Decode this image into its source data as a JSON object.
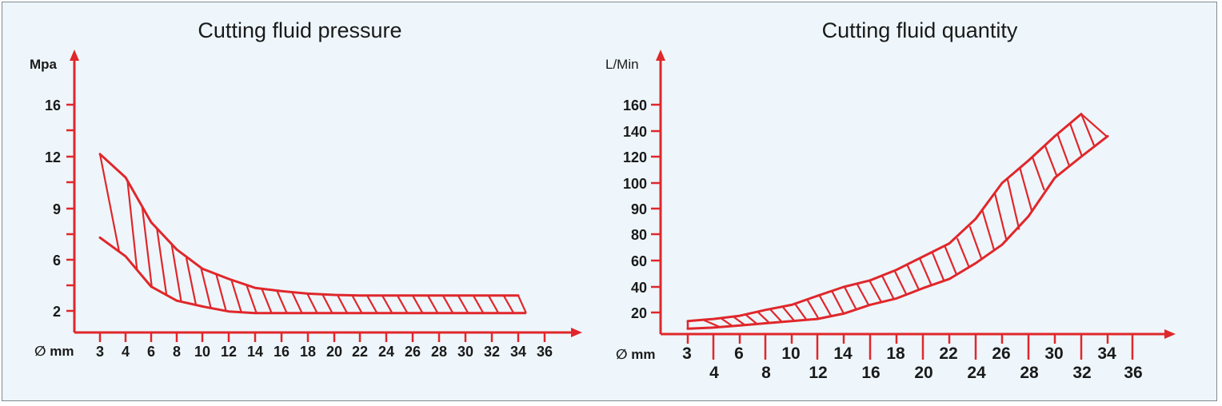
{
  "colors": {
    "accent": "#e0272b",
    "background": "#eef6fb",
    "text": "#1a1a1a"
  },
  "chart_data": [
    {
      "type": "area",
      "title": "Cutting fluid pressure",
      "ylabel": "Mpa",
      "xlabel": "∅ mm",
      "x_ticks": [
        3,
        4,
        6,
        8,
        10,
        12,
        14,
        16,
        18,
        20,
        22,
        24,
        26,
        28,
        30,
        32,
        34,
        36
      ],
      "y_ticks": [
        2,
        6,
        9,
        12,
        16
      ],
      "grid": false,
      "hatched_band": true,
      "series": [
        {
          "x": [
            3,
            4,
            6,
            8,
            10,
            12,
            14,
            16,
            18,
            20,
            22,
            24,
            26,
            28,
            30,
            32,
            34
          ],
          "values": [
            12.2,
            10.8,
            8.2,
            6.6,
            5.3,
            4.5,
            3.8,
            3.55,
            3.35,
            3.25,
            3.2,
            3.2,
            3.2,
            3.2,
            3.2,
            3.2,
            3.2
          ]
        },
        {
          "x": [
            3,
            4,
            6,
            8,
            10,
            12,
            14,
            16,
            18,
            20,
            22,
            24,
            26,
            28,
            30,
            32,
            34
          ],
          "values": [
            7.3,
            6.2,
            3.9,
            2.8,
            2.35,
            1.95,
            1.8,
            1.8,
            1.8,
            1.8,
            1.8,
            1.8,
            1.8,
            1.8,
            1.8,
            1.8,
            1.8
          ]
        }
      ]
    },
    {
      "type": "area",
      "title": "Cutting fluid quantity",
      "ylabel": "L/Min",
      "xlabel": "∅ mm",
      "x_ticks": [
        3,
        4,
        6,
        8,
        10,
        12,
        14,
        16,
        18,
        20,
        22,
        24,
        26,
        28,
        30,
        32,
        34,
        36
      ],
      "y_ticks": [
        20,
        40,
        60,
        80,
        90,
        100,
        120,
        140,
        160
      ],
      "grid": false,
      "hatched_band": true,
      "series": [
        {
          "x": [
            3,
            4,
            6,
            8,
            10,
            12,
            14,
            16,
            18,
            20,
            22,
            24,
            26,
            28,
            30,
            32
          ],
          "values": [
            12,
            14,
            17,
            22,
            26,
            33,
            40,
            45,
            53,
            63,
            73,
            86,
            100,
            117,
            136,
            153
          ]
        },
        {
          "x": [
            3,
            4,
            6,
            8,
            10,
            12,
            14,
            16,
            18,
            20,
            22,
            24,
            26,
            28,
            30,
            32,
            34
          ],
          "values": [
            5,
            6,
            8,
            10,
            12,
            14,
            19,
            26,
            31,
            39,
            46,
            58,
            72,
            87,
            104,
            120,
            136
          ]
        }
      ]
    }
  ]
}
